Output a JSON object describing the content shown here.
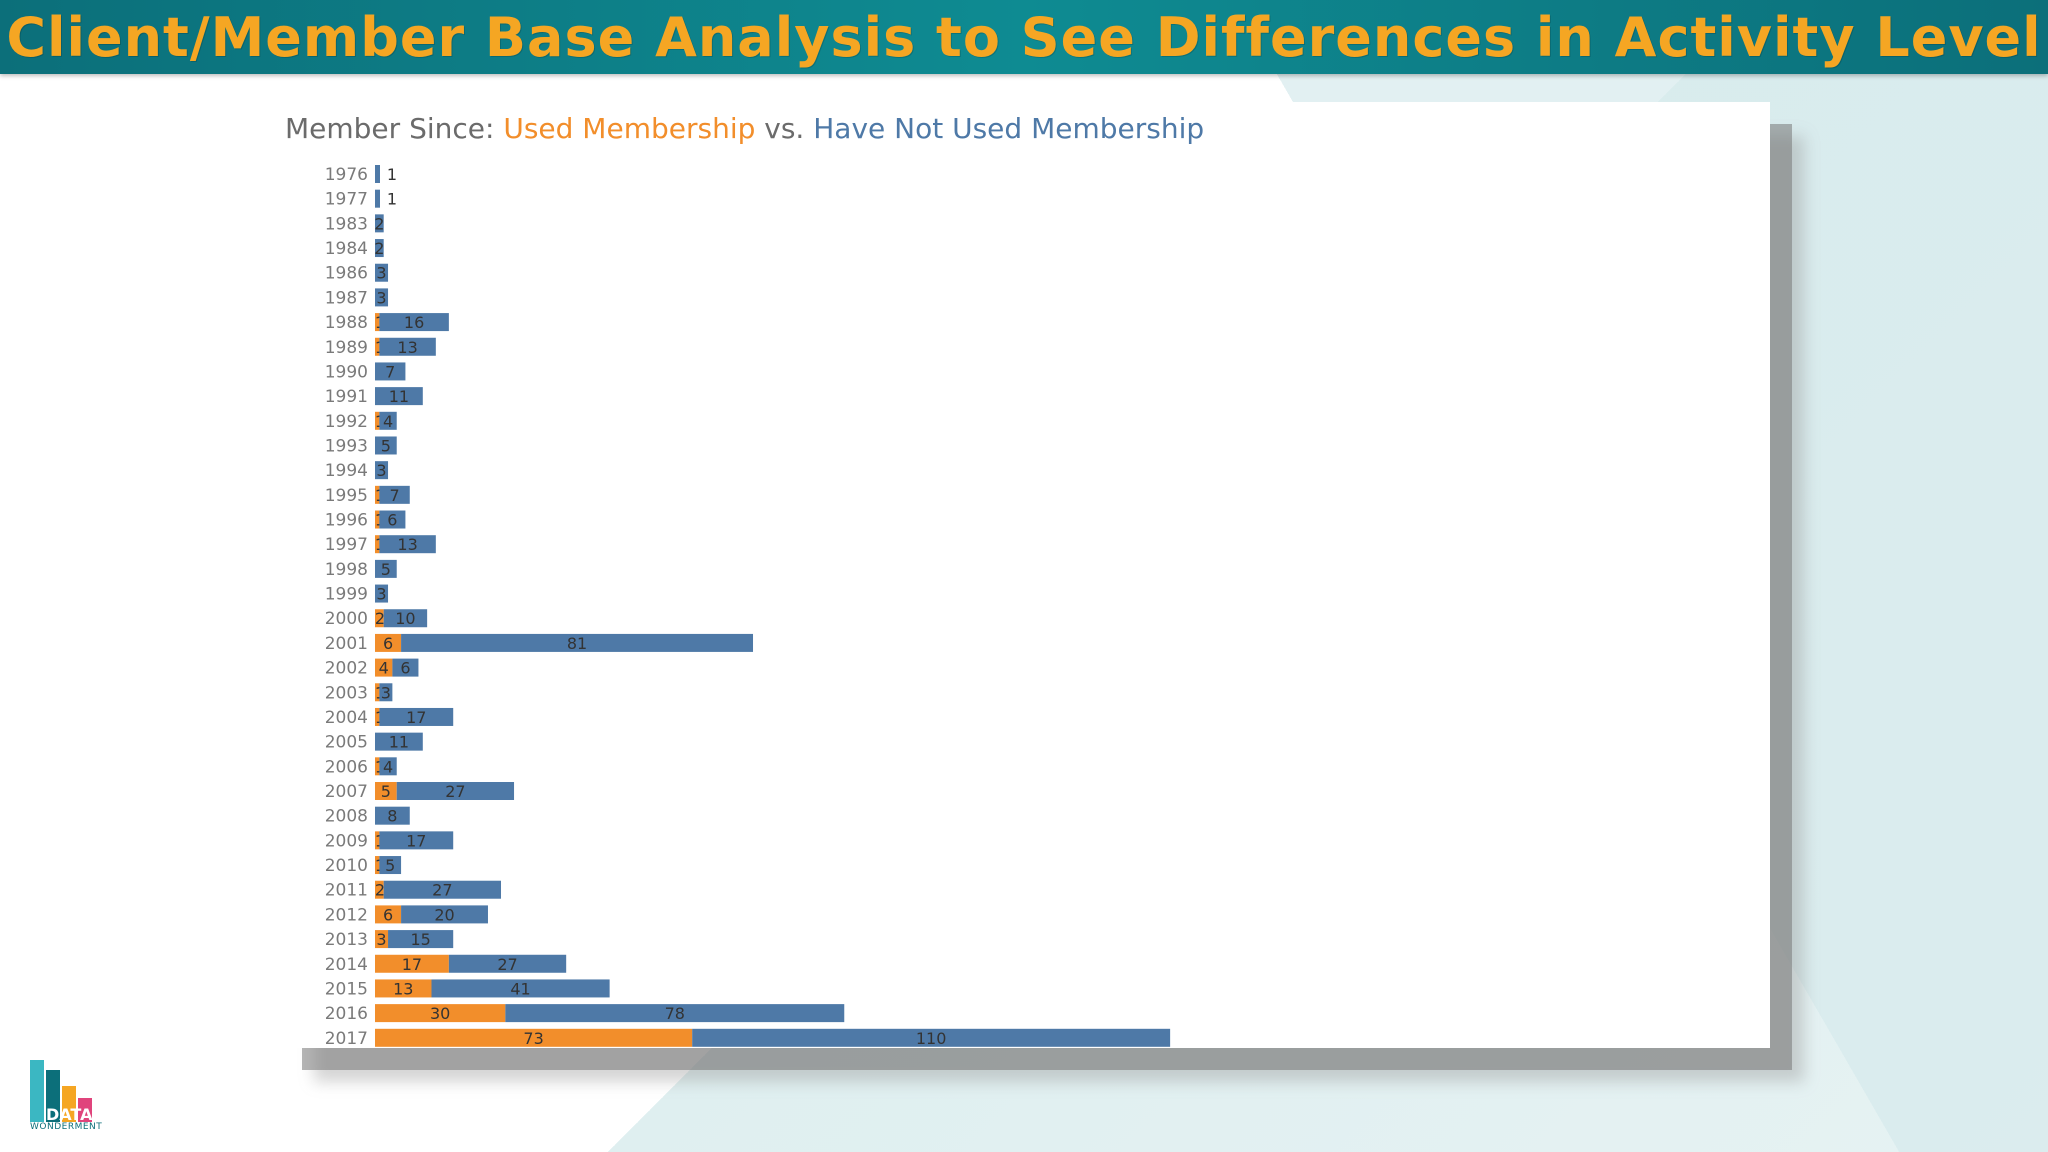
{
  "header": {
    "title": "Client/Member Base Analysis to See Differences in Activity Level"
  },
  "chart_title": {
    "prefix": "Member Since: ",
    "used_label": "Used Membership",
    "vs": " vs. ",
    "not_used_label": "Have Not Used Membership"
  },
  "logo": {
    "text_main": "DATA",
    "text_sub": "WONDERMENT"
  },
  "colors": {
    "used": "#f28e2b",
    "not_used": "#4e79a7",
    "header_bg": "#0e7f88",
    "header_text": "#f5a623"
  },
  "chart_data": {
    "type": "bar",
    "orientation": "horizontal",
    "stacked": true,
    "title": "Member Since: Used Membership vs. Have Not Used Membership",
    "categories": [
      "1976",
      "1977",
      "1983",
      "1984",
      "1986",
      "1987",
      "1988",
      "1989",
      "1990",
      "1991",
      "1992",
      "1993",
      "1994",
      "1995",
      "1996",
      "1997",
      "1998",
      "1999",
      "2000",
      "2001",
      "2002",
      "2003",
      "2004",
      "2005",
      "2006",
      "2007",
      "2008",
      "2009",
      "2010",
      "2011",
      "2012",
      "2013",
      "2014",
      "2015",
      "2016",
      "2017"
    ],
    "series": [
      {
        "name": "Used Membership",
        "values": [
          0,
          0,
          0,
          0,
          0,
          0,
          1,
          1,
          0,
          0,
          1,
          0,
          0,
          1,
          1,
          1,
          0,
          0,
          2,
          6,
          4,
          1,
          1,
          0,
          1,
          5,
          0,
          1,
          1,
          2,
          6,
          3,
          17,
          13,
          30,
          73
        ]
      },
      {
        "name": "Have Not Used Membership",
        "values": [
          1,
          1,
          2,
          2,
          3,
          3,
          16,
          13,
          7,
          11,
          4,
          5,
          3,
          7,
          6,
          13,
          5,
          3,
          10,
          81,
          6,
          3,
          17,
          11,
          4,
          27,
          8,
          17,
          5,
          27,
          20,
          15,
          27,
          41,
          78,
          110
        ]
      }
    ]
  }
}
